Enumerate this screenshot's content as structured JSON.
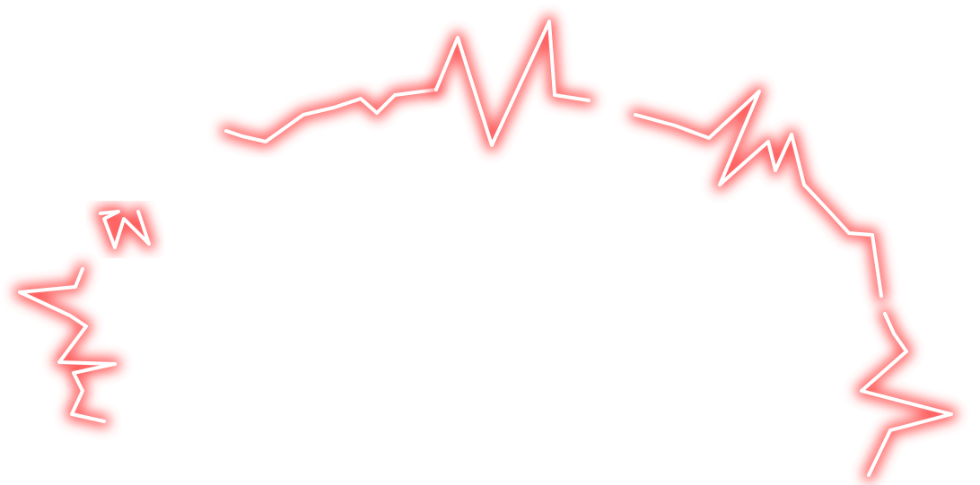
{
  "graphic": {
    "glow_color": "#ff3b3b",
    "core_color": "#ffffff",
    "background": "#ffffff"
  }
}
